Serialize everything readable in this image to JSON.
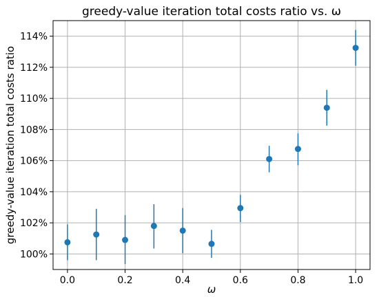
{
  "chart_data": {
    "type": "scatter",
    "title": "greedy-value iteration total costs ratio vs. ω",
    "xlabel": "ω",
    "ylabel": "greedy-value iteration total costs ratio",
    "xlim": [
      -0.05,
      1.05
    ],
    "ylim": [
      99.0,
      115.0
    ],
    "x_ticks": [
      0.0,
      0.2,
      0.4,
      0.6,
      0.8,
      1.0
    ],
    "x_tick_labels": [
      "0.0",
      "0.2",
      "0.4",
      "0.6",
      "0.8",
      "1.0"
    ],
    "y_ticks": [
      100,
      102,
      104,
      106,
      108,
      110,
      112,
      114
    ],
    "y_tick_labels": [
      "100%",
      "102%",
      "104%",
      "106%",
      "108%",
      "110%",
      "112%",
      "114%"
    ],
    "grid": true,
    "marker_color": "#1f77b4",
    "points": [
      {
        "x": 0.0,
        "y": 100.75,
        "yerr_low": 99.6,
        "yerr_high": 101.9
      },
      {
        "x": 0.1,
        "y": 101.25,
        "yerr_low": 99.6,
        "yerr_high": 102.9
      },
      {
        "x": 0.2,
        "y": 100.9,
        "yerr_low": 99.35,
        "yerr_high": 102.5
      },
      {
        "x": 0.3,
        "y": 101.8,
        "yerr_low": 100.35,
        "yerr_high": 103.2
      },
      {
        "x": 0.4,
        "y": 101.5,
        "yerr_low": 100.05,
        "yerr_high": 102.95
      },
      {
        "x": 0.5,
        "y": 100.65,
        "yerr_low": 99.75,
        "yerr_high": 101.55
      },
      {
        "x": 0.6,
        "y": 102.95,
        "yerr_low": 102.05,
        "yerr_high": 103.8
      },
      {
        "x": 0.7,
        "y": 106.1,
        "yerr_low": 105.25,
        "yerr_high": 106.95
      },
      {
        "x": 0.8,
        "y": 106.75,
        "yerr_low": 105.7,
        "yerr_high": 107.75
      },
      {
        "x": 0.9,
        "y": 109.4,
        "yerr_low": 108.25,
        "yerr_high": 110.55
      },
      {
        "x": 1.0,
        "y": 113.25,
        "yerr_low": 112.1,
        "yerr_high": 114.4
      }
    ]
  }
}
